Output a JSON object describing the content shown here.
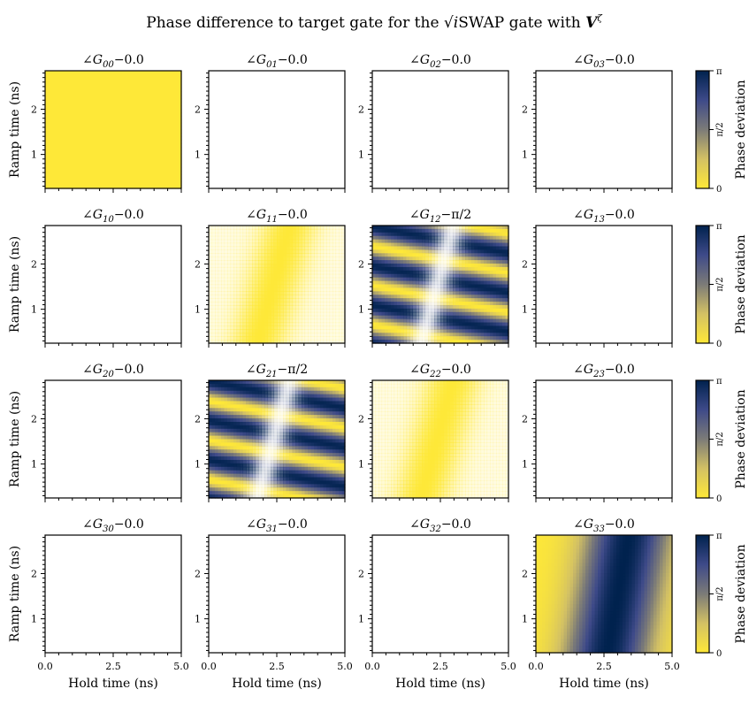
{
  "figure": {
    "title_prefix": "Phase difference to target gate for the",
    "title_gate_sqrt": "√",
    "title_gate_i": "i",
    "title_gate_name": "SWAP",
    "title_mid": "gate with",
    "title_V": "V",
    "title_zeta": "ζ"
  },
  "chart_data": {
    "type": "heatmap",
    "xlabel": "Hold time (ns)",
    "ylabel": "Ramp time (ns)",
    "xlim": [
      0.0,
      5.0
    ],
    "ylim": [
      0.25,
      2.85
    ],
    "xticks": [
      0.0,
      2.5,
      5.0
    ],
    "xtick_labels": [
      "0.0",
      "2.5",
      "5.0"
    ],
    "yticks": [
      1,
      2
    ],
    "ytick_labels": [
      "1",
      "2"
    ],
    "colorbar": {
      "label": "Phase deviation",
      "range": [
        0,
        3.14159
      ],
      "tick_labels": [
        "0",
        "π/2",
        "π"
      ],
      "colormap": "cividis_reversed"
    },
    "panels": [
      {
        "row": 0,
        "col": 0,
        "symbol": "∠G",
        "index": "00",
        "offset": "−0.0",
        "pattern": "uniform_zero"
      },
      {
        "row": 0,
        "col": 1,
        "symbol": "∠G",
        "index": "01",
        "offset": "−0.0",
        "pattern": "empty"
      },
      {
        "row": 0,
        "col": 2,
        "symbol": "∠G",
        "index": "02",
        "offset": "−0.0",
        "pattern": "empty"
      },
      {
        "row": 0,
        "col": 3,
        "symbol": "∠G",
        "index": "03",
        "offset": "−0.0",
        "pattern": "empty"
      },
      {
        "row": 1,
        "col": 0,
        "symbol": "∠G",
        "index": "10",
        "offset": "−0.0",
        "pattern": "empty"
      },
      {
        "row": 1,
        "col": 1,
        "symbol": "∠G",
        "index": "11",
        "offset": "−0.0",
        "pattern": "gentle"
      },
      {
        "row": 1,
        "col": 2,
        "symbol": "∠G",
        "index": "12",
        "offset": "−π/2",
        "pattern": "fringes"
      },
      {
        "row": 1,
        "col": 3,
        "symbol": "∠G",
        "index": "13",
        "offset": "−0.0",
        "pattern": "empty"
      },
      {
        "row": 2,
        "col": 0,
        "symbol": "∠G",
        "index": "20",
        "offset": "−0.0",
        "pattern": "empty"
      },
      {
        "row": 2,
        "col": 1,
        "symbol": "∠G",
        "index": "21",
        "offset": "−π/2",
        "pattern": "fringes"
      },
      {
        "row": 2,
        "col": 2,
        "symbol": "∠G",
        "index": "22",
        "offset": "−0.0",
        "pattern": "gentle"
      },
      {
        "row": 2,
        "col": 3,
        "symbol": "∠G",
        "index": "23",
        "offset": "−0.0",
        "pattern": "empty"
      },
      {
        "row": 3,
        "col": 0,
        "symbol": "∠G",
        "index": "30",
        "offset": "−0.0",
        "pattern": "empty"
      },
      {
        "row": 3,
        "col": 1,
        "symbol": "∠G",
        "index": "31",
        "offset": "−0.0",
        "pattern": "empty"
      },
      {
        "row": 3,
        "col": 2,
        "symbol": "∠G",
        "index": "32",
        "offset": "−0.0",
        "pattern": "empty"
      },
      {
        "row": 3,
        "col": 3,
        "symbol": "∠G",
        "index": "33",
        "offset": "−0.0",
        "pattern": "band"
      }
    ]
  }
}
